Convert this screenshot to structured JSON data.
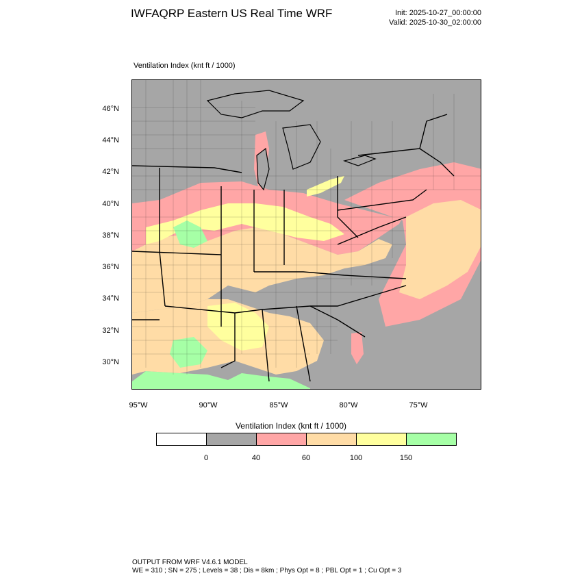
{
  "header": {
    "title": "IWFAQRP Eastern US Real Time WRF",
    "init": "Init: 2025-10-27_00:00:00",
    "valid": "Valid: 2025-10-30_02:00:00"
  },
  "map": {
    "field_label": "Ventilation Index   (knt ft / 1000)",
    "lat_labels": [
      "46°N",
      "44°N",
      "42°N",
      "40°N",
      "38°N",
      "36°N",
      "34°N",
      "32°N",
      "30°N"
    ],
    "lon_labels": [
      "95°W",
      "90°W",
      "85°W",
      "80°W",
      "75°W"
    ]
  },
  "legend": {
    "title": "Ventilation Index  (knt ft / 1000)",
    "colors": [
      "#ffffff",
      "#a6a6a6",
      "#ffa6a6",
      "#ffdca6",
      "#ffff9e",
      "#a6ffa6"
    ],
    "ticks": [
      "0",
      "40",
      "60",
      "100",
      "150"
    ]
  },
  "footer": {
    "line1": "OUTPUT FROM WRF V4.6.1 MODEL",
    "line2": "WE = 310 ; SN = 275 ; Levels = 38 ; Dis = 8km ; Phys Opt = 8 ; PBL Opt = 1 ; Cu Opt = 3"
  }
}
